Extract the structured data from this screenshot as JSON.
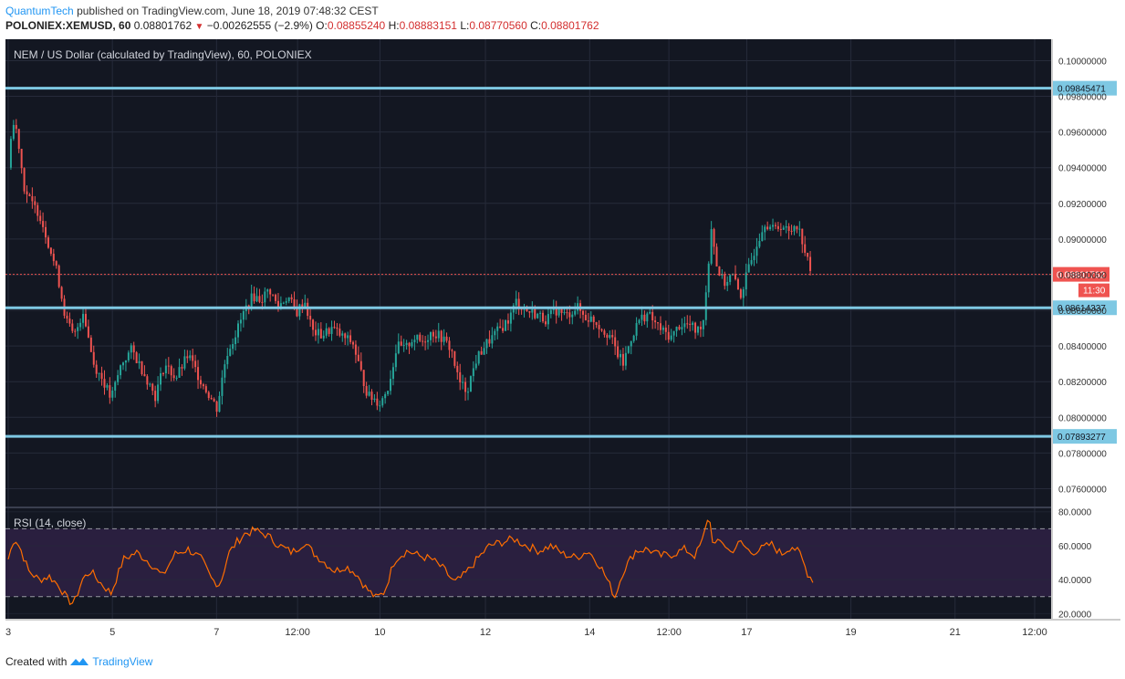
{
  "header": {
    "author": "QuantumTech",
    "published_text": "published on TradingView.com, June 18, 2019 07:48:32 CEST",
    "symbol": "POLONIEX:XEMUSD, 60",
    "last": "0.08801762",
    "change": "−0.00262555 (−2.9%)",
    "o_label": "O:",
    "o_value": "0.08855240",
    "h_label": "H:",
    "h_value": "0.08883151",
    "l_label": "L:",
    "l_value": "0.08770560",
    "c_label": "C:",
    "c_value": "0.08801762"
  },
  "footer": {
    "created_with": "Created with",
    "brand": "TradingView"
  },
  "colors": {
    "background": "#131722",
    "grid": "#262b3a",
    "up": "#26a69a",
    "down": "#ef5350",
    "level": "#7ec8e3",
    "rsi_line": "#ff6d00",
    "rsi_band": "#2a1f3f"
  },
  "chart_data": [
    {
      "type": "candlestick",
      "title": "NEM / US Dollar (calculated by TradingView), 60, POLONIEX",
      "ylim": [
        0.075,
        0.1012
      ],
      "y_ticks": [
        "0.10000000",
        "0.09800000",
        "0.09600000",
        "0.09400000",
        "0.09200000",
        "0.09000000",
        "0.08800000",
        "0.08600000",
        "0.08400000",
        "0.08200000",
        "0.08000000",
        "0.07800000",
        "0.07600000"
      ],
      "x_ticks": [
        {
          "label": "3",
          "pos": 0.0
        },
        {
          "label": "5",
          "pos": 0.1013
        },
        {
          "label": "7",
          "pos": 0.2026
        },
        {
          "label": "12:00",
          "pos": 0.2814
        },
        {
          "label": "10",
          "pos": 0.3615
        },
        {
          "label": "12",
          "pos": 0.4641
        },
        {
          "label": "14",
          "pos": 0.5655
        },
        {
          "label": "12:00",
          "pos": 0.6425
        },
        {
          "label": "17",
          "pos": 0.7182
        },
        {
          "label": "19",
          "pos": 0.8195
        },
        {
          "label": "21",
          "pos": 0.9208
        },
        {
          "label": "12:00",
          "pos": 0.9982
        }
      ],
      "x_ticks_pos_unit": "fraction of x-axis range (Jun 3 to Jun 22)",
      "horizontal_levels": [
        {
          "value": 0.09845471,
          "label": "0.09845471"
        },
        {
          "value": 0.08614337,
          "label": "0.08614337"
        },
        {
          "value": 0.07893277,
          "label": "0.07893277"
        }
      ],
      "last_price": {
        "value": 0.08801762,
        "label": "0.08801762",
        "countdown": "11:30"
      },
      "price_path_pos_unit": "fraction of x-axis range",
      "price_path": [
        [
          0.0,
          0.094
        ],
        [
          0.004,
          0.0965
        ],
        [
          0.009,
          0.096
        ],
        [
          0.015,
          0.093
        ],
        [
          0.022,
          0.092
        ],
        [
          0.03,
          0.0915
        ],
        [
          0.038,
          0.09
        ],
        [
          0.048,
          0.088
        ],
        [
          0.056,
          0.0855
        ],
        [
          0.064,
          0.0845
        ],
        [
          0.073,
          0.086
        ],
        [
          0.083,
          0.083
        ],
        [
          0.093,
          0.082
        ],
        [
          0.1,
          0.081
        ],
        [
          0.11,
          0.083
        ],
        [
          0.12,
          0.0838
        ],
        [
          0.132,
          0.0825
        ],
        [
          0.143,
          0.0812
        ],
        [
          0.152,
          0.083
        ],
        [
          0.163,
          0.0822
        ],
        [
          0.175,
          0.0835
        ],
        [
          0.186,
          0.0822
        ],
        [
          0.196,
          0.0812
        ],
        [
          0.203,
          0.0805
        ],
        [
          0.212,
          0.0835
        ],
        [
          0.222,
          0.0848
        ],
        [
          0.23,
          0.086
        ],
        [
          0.238,
          0.0868
        ],
        [
          0.246,
          0.0866
        ],
        [
          0.254,
          0.0872
        ],
        [
          0.262,
          0.0862
        ],
        [
          0.272,
          0.0868
        ],
        [
          0.28,
          0.0858
        ],
        [
          0.288,
          0.0866
        ],
        [
          0.296,
          0.0848
        ],
        [
          0.305,
          0.0846
        ],
        [
          0.315,
          0.085
        ],
        [
          0.325,
          0.0845
        ],
        [
          0.335,
          0.0842
        ],
        [
          0.343,
          0.0825
        ],
        [
          0.35,
          0.0812
        ],
        [
          0.357,
          0.081
        ],
        [
          0.362,
          0.0808
        ],
        [
          0.37,
          0.0818
        ],
        [
          0.378,
          0.084
        ],
        [
          0.386,
          0.0838
        ],
        [
          0.394,
          0.0845
        ],
        [
          0.402,
          0.0842
        ],
        [
          0.412,
          0.0848
        ],
        [
          0.421,
          0.0845
        ],
        [
          0.431,
          0.0838
        ],
        [
          0.438,
          0.082
        ],
        [
          0.446,
          0.0815
        ],
        [
          0.455,
          0.0832
        ],
        [
          0.463,
          0.084
        ],
        [
          0.471,
          0.0845
        ],
        [
          0.479,
          0.085
        ],
        [
          0.487,
          0.0855
        ],
        [
          0.494,
          0.0865
        ],
        [
          0.503,
          0.086
        ],
        [
          0.513,
          0.0858
        ],
        [
          0.523,
          0.0855
        ],
        [
          0.533,
          0.086
        ],
        [
          0.543,
          0.0857
        ],
        [
          0.553,
          0.0862
        ],
        [
          0.561,
          0.0856
        ],
        [
          0.569,
          0.0855
        ],
        [
          0.577,
          0.085
        ],
        [
          0.585,
          0.0846
        ],
        [
          0.592,
          0.0836
        ],
        [
          0.598,
          0.083
        ],
        [
          0.606,
          0.0845
        ],
        [
          0.614,
          0.0855
        ],
        [
          0.622,
          0.0858
        ],
        [
          0.63,
          0.0852
        ],
        [
          0.637,
          0.0848
        ],
        [
          0.645,
          0.0845
        ],
        [
          0.653,
          0.0852
        ],
        [
          0.662,
          0.0852
        ],
        [
          0.67,
          0.0848
        ],
        [
          0.676,
          0.0855
        ],
        [
          0.68,
          0.088
        ],
        [
          0.684,
          0.0908
        ],
        [
          0.689,
          0.0885
        ],
        [
          0.696,
          0.0875
        ],
        [
          0.704,
          0.088
        ],
        [
          0.712,
          0.0868
        ],
        [
          0.72,
          0.0883
        ],
        [
          0.728,
          0.0898
        ],
        [
          0.736,
          0.091
        ],
        [
          0.744,
          0.0905
        ],
        [
          0.752,
          0.0908
        ],
        [
          0.76,
          0.0903
        ],
        [
          0.766,
          0.091
        ],
        [
          0.772,
          0.09
        ],
        [
          0.777,
          0.0888
        ],
        [
          0.782,
          0.088
        ]
      ]
    },
    {
      "type": "line",
      "title": "RSI (14, close)",
      "ylim": [
        17,
        82
      ],
      "y_ticks": [
        {
          "value": 80,
          "label": "80.0000"
        },
        {
          "value": 60,
          "label": "60.0000"
        },
        {
          "value": 40,
          "label": "40.0000"
        },
        {
          "value": 20,
          "label": "20.0000"
        }
      ],
      "bands": [
        70,
        30
      ],
      "rsi_path_pos_unit": "fraction of x-axis range",
      "rsi_path": [
        [
          0.0,
          52
        ],
        [
          0.006,
          65
        ],
        [
          0.012,
          58
        ],
        [
          0.02,
          45
        ],
        [
          0.03,
          40
        ],
        [
          0.04,
          42
        ],
        [
          0.05,
          36
        ],
        [
          0.058,
          28
        ],
        [
          0.064,
          26
        ],
        [
          0.072,
          40
        ],
        [
          0.08,
          45
        ],
        [
          0.09,
          38
        ],
        [
          0.1,
          32
        ],
        [
          0.112,
          52
        ],
        [
          0.125,
          56
        ],
        [
          0.138,
          50
        ],
        [
          0.15,
          42
        ],
        [
          0.162,
          55
        ],
        [
          0.175,
          58
        ],
        [
          0.188,
          52
        ],
        [
          0.198,
          40
        ],
        [
          0.206,
          37
        ],
        [
          0.214,
          55
        ],
        [
          0.222,
          62
        ],
        [
          0.23,
          67
        ],
        [
          0.24,
          69
        ],
        [
          0.252,
          66
        ],
        [
          0.264,
          60
        ],
        [
          0.276,
          56
        ],
        [
          0.288,
          62
        ],
        [
          0.298,
          55
        ],
        [
          0.308,
          50
        ],
        [
          0.318,
          45
        ],
        [
          0.328,
          48
        ],
        [
          0.338,
          44
        ],
        [
          0.348,
          35
        ],
        [
          0.358,
          29
        ],
        [
          0.366,
          33
        ],
        [
          0.376,
          52
        ],
        [
          0.388,
          57
        ],
        [
          0.4,
          54
        ],
        [
          0.412,
          52
        ],
        [
          0.424,
          46
        ],
        [
          0.434,
          38
        ],
        [
          0.444,
          43
        ],
        [
          0.456,
          52
        ],
        [
          0.468,
          60
        ],
        [
          0.48,
          62
        ],
        [
          0.492,
          64
        ],
        [
          0.504,
          60
        ],
        [
          0.516,
          57
        ],
        [
          0.528,
          60
        ],
        [
          0.54,
          55
        ],
        [
          0.552,
          53
        ],
        [
          0.564,
          57
        ],
        [
          0.576,
          48
        ],
        [
          0.584,
          38
        ],
        [
          0.59,
          30
        ],
        [
          0.598,
          45
        ],
        [
          0.61,
          57
        ],
        [
          0.622,
          58
        ],
        [
          0.634,
          54
        ],
        [
          0.646,
          55
        ],
        [
          0.658,
          58
        ],
        [
          0.668,
          54
        ],
        [
          0.676,
          64
        ],
        [
          0.681,
          79
        ],
        [
          0.686,
          60
        ],
        [
          0.694,
          63
        ],
        [
          0.702,
          56
        ],
        [
          0.712,
          62
        ],
        [
          0.722,
          56
        ],
        [
          0.732,
          58
        ],
        [
          0.742,
          61
        ],
        [
          0.752,
          55
        ],
        [
          0.762,
          60
        ],
        [
          0.77,
          55
        ],
        [
          0.778,
          43
        ],
        [
          0.784,
          39
        ]
      ]
    }
  ]
}
